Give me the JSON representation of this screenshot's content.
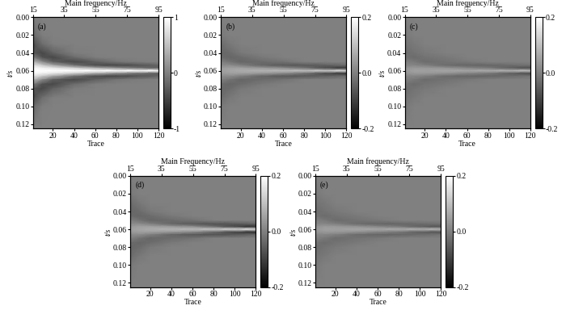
{
  "chart_data": [
    {
      "type": "heatmap",
      "label": "(a)",
      "x_label": "Trace",
      "y_label": "t/s",
      "x2_label": "Main frequency/Hz",
      "x": [
        1,
        10,
        20,
        40,
        60,
        80,
        100,
        120
      ],
      "y": [
        0.0,
        0.02,
        0.03,
        0.04,
        0.045,
        0.05,
        0.054,
        0.057,
        0.06,
        0.063,
        0.066,
        0.07,
        0.075,
        0.08,
        0.09,
        0.1,
        0.125
      ],
      "cells": [
        [
          -0.005,
          0,
          0,
          0,
          0,
          0,
          0,
          0
        ],
        [
          -0.175,
          -0.012,
          0,
          0,
          0,
          0,
          0,
          0
        ],
        [
          -0.406,
          -0.135,
          -0.012,
          0,
          0,
          0,
          0,
          0
        ],
        [
          -0.319,
          -0.435,
          -0.234,
          -0.016,
          0,
          0,
          0,
          0
        ],
        [
          0,
          -0.36,
          -0.435,
          -0.155,
          -0.015,
          0,
          0,
          0
        ],
        [
          0.445,
          0.083,
          -0.253,
          -0.44,
          -0.249,
          -0.085,
          -0.016,
          0
        ],
        [
          0.775,
          0.587,
          0.335,
          -0.107,
          -0.392,
          -0.443,
          -0.346,
          -0.218
        ],
        [
          0.94,
          0.887,
          0.803,
          0.605,
          0.353,
          0.118,
          -0.107,
          -0.27
        ],
        [
          1,
          1,
          1,
          1,
          1,
          1,
          1,
          1
        ],
        [
          0.94,
          0.887,
          0.803,
          0.605,
          0.353,
          0.118,
          -0.107,
          -0.27
        ],
        [
          0.775,
          0.587,
          0.335,
          -0.107,
          -0.392,
          -0.443,
          -0.346,
          -0.218
        ],
        [
          0.445,
          0.083,
          -0.253,
          -0.44,
          -0.249,
          -0.085,
          -0.016,
          0
        ],
        [
          0,
          -0.36,
          -0.435,
          -0.155,
          -0.015,
          0,
          0,
          0
        ],
        [
          -0.319,
          -0.435,
          -0.234,
          -0.016,
          0,
          0,
          0,
          0
        ],
        [
          -0.406,
          -0.135,
          -0.012,
          0,
          0,
          0,
          0,
          0
        ],
        [
          -0.175,
          -0.012,
          0,
          0,
          0,
          0,
          0,
          0
        ],
        [
          0,
          0,
          0,
          0,
          0,
          0,
          0,
          0
        ]
      ],
      "xlim": [
        1,
        120
      ],
      "xticks": [
        20,
        40,
        60,
        80,
        100,
        120
      ],
      "ylim": [
        0.125,
        0.0
      ],
      "yticks": [
        {
          "value": 0.0,
          "label": "0.00"
        },
        {
          "value": 0.02,
          "label": "0.02"
        },
        {
          "value": 0.04,
          "label": "0.04"
        },
        {
          "value": 0.06,
          "label": "0.06"
        },
        {
          "value": 0.08,
          "label": "0.08"
        },
        {
          "value": 0.1,
          "label": "0.10"
        },
        {
          "value": 0.12,
          "label": "0.12"
        }
      ],
      "x2lim": [
        15,
        95
      ],
      "x2ticks": [
        15,
        35,
        55,
        75,
        95
      ],
      "color_range": [
        -1,
        1
      ],
      "color_ticks": [
        -1,
        0,
        1
      ]
    },
    {
      "type": "heatmap",
      "label": "(b)",
      "x_label": "Trace",
      "y_label": "t/s",
      "x2_label": "Main frequency/Hz",
      "x": [
        1,
        10,
        20,
        40,
        60,
        80,
        100,
        120
      ],
      "y": [
        0.0,
        0.02,
        0.03,
        0.04,
        0.045,
        0.05,
        0.054,
        0.057,
        0.06,
        0.063,
        0.066,
        0.07,
        0.075,
        0.08,
        0.09,
        0.1,
        0.125
      ],
      "cells": [
        [
          0,
          0,
          0,
          0,
          0,
          0,
          0,
          0
        ],
        [
          -0.01,
          0,
          0,
          0,
          0,
          0,
          0,
          0
        ],
        [
          -0.03,
          -0.01,
          0,
          0,
          0,
          0,
          0,
          0
        ],
        [
          -0.04,
          -0.03,
          -0.01,
          0,
          0,
          0,
          0,
          0
        ],
        [
          -0.03,
          -0.04,
          -0.03,
          -0.01,
          0,
          0,
          0,
          0
        ],
        [
          0,
          -0.02,
          -0.04,
          -0.03,
          -0.02,
          0,
          0,
          0
        ],
        [
          0.02,
          0.02,
          0,
          -0.04,
          -0.06,
          -0.06,
          -0.05,
          -0.03
        ],
        [
          0.04,
          0.05,
          0.05,
          0.04,
          0.02,
          -0.02,
          -0.08,
          -0.12
        ],
        [
          0.05,
          0.06,
          0.07,
          0.08,
          0.09,
          0.1,
          0.12,
          0.15
        ],
        [
          0.04,
          0.05,
          0.05,
          0.04,
          0.02,
          -0.02,
          -0.08,
          -0.12
        ],
        [
          0.02,
          0.02,
          0,
          -0.04,
          -0.06,
          -0.06,
          -0.05,
          -0.03
        ],
        [
          0,
          -0.02,
          -0.04,
          -0.03,
          -0.02,
          0,
          0,
          0
        ],
        [
          -0.03,
          -0.04,
          -0.03,
          -0.01,
          0,
          0,
          0,
          0
        ],
        [
          -0.04,
          -0.03,
          -0.01,
          0,
          0,
          0,
          0,
          0
        ],
        [
          -0.03,
          -0.01,
          0,
          0,
          0,
          0,
          0,
          0
        ],
        [
          -0.01,
          0,
          0,
          0,
          0,
          0,
          0,
          0
        ],
        [
          0,
          0,
          0,
          0,
          0,
          0,
          0,
          0
        ]
      ],
      "xlim": [
        1,
        120
      ],
      "xticks": [
        20,
        40,
        60,
        80,
        100,
        120
      ],
      "ylim": [
        0.125,
        0.0
      ],
      "yticks": [
        {
          "value": 0.0,
          "label": "0.00"
        },
        {
          "value": 0.02,
          "label": "0.02"
        },
        {
          "value": 0.04,
          "label": "0.04"
        },
        {
          "value": 0.06,
          "label": "0.06"
        },
        {
          "value": 0.08,
          "label": "0.08"
        },
        {
          "value": 0.1,
          "label": "0.10"
        },
        {
          "value": 0.12,
          "label": "0.12"
        }
      ],
      "x2lim": [
        15,
        95
      ],
      "x2ticks": [
        15,
        35,
        55,
        75,
        95
      ],
      "color_range": [
        -0.2,
        0.2
      ],
      "color_ticks": [
        -0.2,
        {
          "value": 0,
          "label": "0.0"
        },
        0.2
      ]
    },
    {
      "type": "heatmap",
      "label": "(c)",
      "x_label": "Trace",
      "y_label": "t/s",
      "x2_label": "Main frequency/Hz",
      "x": [
        1,
        10,
        20,
        40,
        60,
        80,
        100,
        120
      ],
      "y": [
        0.0,
        0.02,
        0.03,
        0.04,
        0.045,
        0.05,
        0.054,
        0.057,
        0.06,
        0.063,
        0.066,
        0.07,
        0.075,
        0.08,
        0.09,
        0.1,
        0.125
      ],
      "cells": [
        [
          0,
          0,
          0,
          0,
          0,
          0,
          0,
          0
        ],
        [
          -0.01,
          0,
          0,
          0,
          0,
          0,
          0,
          0
        ],
        [
          -0.02,
          -0.01,
          0,
          0,
          0,
          0,
          0,
          0
        ],
        [
          -0.03,
          -0.02,
          -0.01,
          0,
          0,
          0,
          0,
          0
        ],
        [
          -0.02,
          -0.03,
          -0.02,
          -0.01,
          0,
          0,
          0,
          0
        ],
        [
          0,
          -0.01,
          -0.03,
          -0.02,
          -0.01,
          0,
          0,
          0
        ],
        [
          0.01,
          0.01,
          0,
          -0.03,
          -0.04,
          -0.04,
          -0.03,
          -0.02
        ],
        [
          0.03,
          0.04,
          0.04,
          0.03,
          0.01,
          -0.01,
          -0.05,
          -0.08
        ],
        [
          0.04,
          0.05,
          0.05,
          0.06,
          0.06,
          0.07,
          0.08,
          0.1
        ],
        [
          0.03,
          0.04,
          0.04,
          0.03,
          0.01,
          -0.01,
          -0.05,
          -0.08
        ],
        [
          0.01,
          0.01,
          0,
          -0.03,
          -0.04,
          -0.04,
          -0.03,
          -0.02
        ],
        [
          0,
          -0.01,
          -0.03,
          -0.02,
          -0.01,
          0,
          0,
          0
        ],
        [
          -0.02,
          -0.03,
          -0.02,
          -0.01,
          0,
          0,
          0,
          0
        ],
        [
          -0.03,
          -0.02,
          -0.01,
          0,
          0,
          0,
          0,
          0
        ],
        [
          -0.02,
          -0.01,
          0,
          0,
          0,
          0,
          0,
          0
        ],
        [
          -0.01,
          0,
          0,
          0,
          0,
          0,
          0,
          0
        ],
        [
          0,
          0,
          0,
          0,
          0,
          0,
          0,
          0
        ]
      ],
      "xlim": [
        1,
        120
      ],
      "xticks": [
        20,
        40,
        60,
        80,
        100,
        120
      ],
      "ylim": [
        0.125,
        0.0
      ],
      "yticks": [
        {
          "value": 0.0,
          "label": "0.00"
        },
        {
          "value": 0.02,
          "label": "0.02"
        },
        {
          "value": 0.04,
          "label": "0.04"
        },
        {
          "value": 0.06,
          "label": "0.06"
        },
        {
          "value": 0.08,
          "label": "0.08"
        },
        {
          "value": 0.1,
          "label": "0.10"
        },
        {
          "value": 0.12,
          "label": "0.12"
        }
      ],
      "x2lim": [
        15,
        95
      ],
      "x2ticks": [
        15,
        35,
        55,
        75,
        95
      ],
      "color_range": [
        -0.2,
        0.2
      ],
      "color_ticks": [
        -0.2,
        {
          "value": 0,
          "label": "0.0"
        },
        0.2
      ]
    },
    {
      "type": "heatmap",
      "label": "(d)",
      "x_label": "Trace",
      "y_label": "t/s",
      "x2_label": "Main Frequency/Hz",
      "x": [
        1,
        10,
        20,
        40,
        60,
        80,
        100,
        120
      ],
      "y": [
        0.0,
        0.02,
        0.03,
        0.04,
        0.045,
        0.05,
        0.054,
        0.057,
        0.06,
        0.063,
        0.066,
        0.07,
        0.075,
        0.08,
        0.09,
        0.1,
        0.125
      ],
      "cells": [
        [
          0,
          0,
          0,
          0,
          0,
          0,
          0,
          0
        ],
        [
          -0.01,
          0,
          0,
          0,
          0,
          0,
          0,
          0
        ],
        [
          -0.03,
          -0.01,
          0,
          0,
          0,
          0,
          0,
          0
        ],
        [
          -0.04,
          -0.03,
          -0.01,
          0,
          0,
          0,
          0,
          0
        ],
        [
          -0.03,
          -0.04,
          -0.03,
          -0.01,
          0,
          0,
          0,
          0
        ],
        [
          0,
          -0.02,
          -0.04,
          -0.03,
          -0.02,
          0,
          0,
          0
        ],
        [
          0.02,
          0.02,
          0,
          -0.04,
          -0.06,
          -0.07,
          -0.06,
          -0.04
        ],
        [
          0.04,
          0.05,
          0.05,
          0.04,
          0.02,
          -0.03,
          -0.09,
          -0.13
        ],
        [
          0.05,
          0.06,
          0.07,
          0.08,
          0.09,
          0.11,
          0.14,
          0.16
        ],
        [
          0.04,
          0.05,
          0.05,
          0.04,
          0.02,
          -0.03,
          -0.09,
          -0.13
        ],
        [
          0.02,
          0.02,
          0,
          -0.04,
          -0.06,
          -0.07,
          -0.06,
          -0.04
        ],
        [
          0,
          -0.02,
          -0.04,
          -0.03,
          -0.02,
          0,
          0,
          0
        ],
        [
          -0.03,
          -0.04,
          -0.03,
          -0.01,
          0,
          0,
          0,
          0
        ],
        [
          -0.04,
          -0.03,
          -0.01,
          0,
          0,
          0,
          0,
          0
        ],
        [
          -0.03,
          -0.01,
          0,
          0,
          0,
          0,
          0,
          0
        ],
        [
          -0.01,
          0,
          0,
          0,
          0,
          0,
          0,
          0
        ],
        [
          0,
          0,
          0,
          0,
          0,
          0,
          0,
          0
        ]
      ],
      "xlim": [
        1,
        120
      ],
      "xticks": [
        20,
        40,
        60,
        80,
        100,
        120
      ],
      "ylim": [
        0.125,
        0.0
      ],
      "yticks": [
        {
          "value": 0.0,
          "label": "0.00"
        },
        {
          "value": 0.02,
          "label": "0.02"
        },
        {
          "value": 0.04,
          "label": "0.04"
        },
        {
          "value": 0.06,
          "label": "0.06"
        },
        {
          "value": 0.08,
          "label": "0.08"
        },
        {
          "value": 0.1,
          "label": "0.10"
        },
        {
          "value": 0.12,
          "label": "0.12"
        }
      ],
      "x2lim": [
        15,
        95
      ],
      "x2ticks": [
        15,
        35,
        55,
        75,
        95
      ],
      "color_range": [
        -0.2,
        0.2
      ],
      "color_ticks": [
        -0.2,
        {
          "value": 0,
          "label": "0.0"
        },
        0.2
      ]
    },
    {
      "type": "heatmap",
      "label": "(e)",
      "x_label": "Trace",
      "y_label": "t/s",
      "x2_label": "Main frequency/Hz",
      "x": [
        1,
        10,
        20,
        40,
        60,
        80,
        100,
        120
      ],
      "y": [
        0.0,
        0.02,
        0.03,
        0.04,
        0.045,
        0.05,
        0.054,
        0.057,
        0.06,
        0.063,
        0.066,
        0.07,
        0.075,
        0.08,
        0.09,
        0.1,
        0.125
      ],
      "cells": [
        [
          0,
          0,
          0,
          0,
          0,
          0,
          0,
          0
        ],
        [
          -0.01,
          0,
          0,
          0,
          0,
          0,
          0,
          0
        ],
        [
          -0.02,
          -0.01,
          0,
          0,
          0,
          0,
          0,
          0
        ],
        [
          -0.03,
          -0.02,
          -0.01,
          0,
          0,
          0,
          0,
          0
        ],
        [
          -0.02,
          -0.03,
          -0.02,
          -0.01,
          0,
          0,
          0,
          0
        ],
        [
          0,
          -0.01,
          -0.03,
          -0.02,
          -0.01,
          0,
          0,
          0
        ],
        [
          0.01,
          0.01,
          0,
          -0.03,
          -0.04,
          -0.04,
          -0.03,
          -0.02
        ],
        [
          0.03,
          0.04,
          0.04,
          0.03,
          0.01,
          -0.01,
          -0.05,
          -0.07
        ],
        [
          0.04,
          0.05,
          0.05,
          0.06,
          0.06,
          0.07,
          0.08,
          0.09
        ],
        [
          0.03,
          0.04,
          0.04,
          0.03,
          0.01,
          -0.01,
          -0.05,
          -0.07
        ],
        [
          0.01,
          0.01,
          0,
          -0.03,
          -0.04,
          -0.04,
          -0.03,
          -0.02
        ],
        [
          0,
          -0.01,
          -0.03,
          -0.02,
          -0.01,
          0,
          0,
          0
        ],
        [
          -0.02,
          -0.03,
          -0.02,
          -0.01,
          0,
          0,
          0,
          0
        ],
        [
          -0.03,
          -0.02,
          -0.01,
          0,
          0,
          0,
          0,
          0
        ],
        [
          -0.02,
          -0.01,
          0,
          0,
          0,
          0,
          0,
          0
        ],
        [
          -0.01,
          0,
          0,
          0,
          0,
          0,
          0,
          0
        ],
        [
          0,
          0,
          0,
          0,
          0,
          0,
          0,
          0
        ]
      ],
      "xlim": [
        1,
        120
      ],
      "xticks": [
        20,
        40,
        60,
        80,
        100,
        120
      ],
      "ylim": [
        0.125,
        0.0
      ],
      "yticks": [
        {
          "value": 0.0,
          "label": "0.00"
        },
        {
          "value": 0.02,
          "label": "0.02"
        },
        {
          "value": 0.04,
          "label": "0.04"
        },
        {
          "value": 0.06,
          "label": "0.06"
        },
        {
          "value": 0.08,
          "label": "0.08"
        },
        {
          "value": 0.1,
          "label": "0.10"
        },
        {
          "value": 0.12,
          "label": "0.12"
        }
      ],
      "x2lim": [
        15,
        95
      ],
      "x2ticks": [
        15,
        35,
        55,
        75,
        95
      ],
      "color_range": [
        -0.2,
        0.2
      ],
      "color_ticks": [
        -0.2,
        {
          "value": 0,
          "label": "0.0"
        },
        0.2
      ]
    }
  ]
}
